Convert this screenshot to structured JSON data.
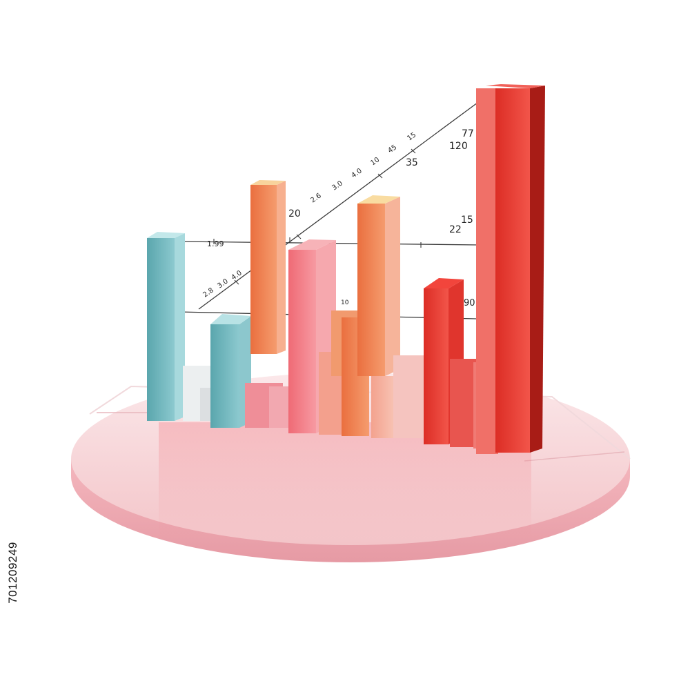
{
  "image": {
    "type": "3d bar chart illustration on round pink podium",
    "colors": {
      "teal": "#5fb5bd",
      "orange": "#f0824f",
      "salmon": "#f06a73",
      "red": "#e8392f",
      "podium": "#f4c7cc",
      "line": "#222222"
    }
  },
  "figure_labels": [
    "1.99",
    "2.8",
    "3.0",
    "4.0",
    "20",
    "2.6",
    "3.0",
    "4.0",
    "10",
    "45",
    "15",
    "77",
    "120",
    "35",
    "15",
    "22",
    "10",
    "90"
  ],
  "side_id": "701209249"
}
